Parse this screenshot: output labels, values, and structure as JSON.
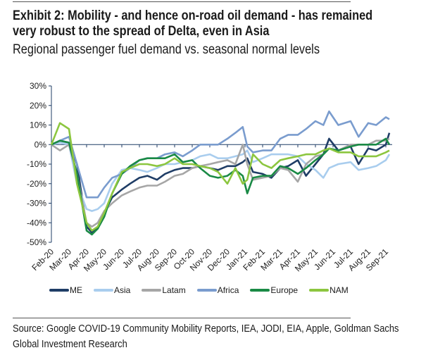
{
  "header": {
    "title_line1": "Exhibit 2: Mobility - and hence on-road oil demand - has remained",
    "title_line2": "very robust to the spread of Delta, even in Asia",
    "subtitle": "Regional passenger fuel demand vs. seasonal normal levels"
  },
  "footer": {
    "source_line1": "Source: Google COVID-19 Community Mobility Reports, IEA, JODI, EIA, Apple, Goldman Sachs",
    "source_line2": "Global Investment Research"
  },
  "chart_data": {
    "type": "line",
    "title": "",
    "xlabel": "",
    "ylabel": "",
    "ylim": [
      -50,
      30
    ],
    "yticks": [
      "30%",
      "20%",
      "10%",
      "0%",
      "-10%",
      "-20%",
      "-30%",
      "-40%",
      "-50%"
    ],
    "ytick_values": [
      30,
      20,
      10,
      0,
      -10,
      -20,
      -30,
      -40,
      -50
    ],
    "xticks": [
      "Feb-20",
      "Mar-20",
      "Apr-20",
      "May-20",
      "Jun-20",
      "Jul-20",
      "Aug-20",
      "Sep-20",
      "Oct-20",
      "Nov-20",
      "Dec-20",
      "Jan-21",
      "Feb-21",
      "Mar-21",
      "Apr-21",
      "May-21",
      "Jun-21",
      "Jul-21",
      "Aug-21",
      "Sep-21"
    ],
    "grid": false,
    "legend_position": "bottom",
    "x": [
      "2020-02-01",
      "2020-02-15",
      "2020-03-01",
      "2020-03-15",
      "2020-04-01",
      "2020-04-10",
      "2020-04-20",
      "2020-05-01",
      "2020-05-15",
      "2020-06-01",
      "2020-06-15",
      "2020-07-01",
      "2020-07-15",
      "2020-08-01",
      "2020-08-15",
      "2020-09-01",
      "2020-09-15",
      "2020-10-01",
      "2020-10-15",
      "2020-11-01",
      "2020-11-15",
      "2020-12-01",
      "2020-12-15",
      "2020-12-28",
      "2021-01-05",
      "2021-01-15",
      "2021-02-01",
      "2021-02-15",
      "2021-03-01",
      "2021-03-15",
      "2021-04-01",
      "2021-04-15",
      "2021-05-01",
      "2021-05-15",
      "2021-05-25",
      "2021-06-10",
      "2021-07-01",
      "2021-07-15",
      "2021-08-01",
      "2021-08-15",
      "2021-09-01",
      "2021-09-07"
    ],
    "series": [
      {
        "name": "ME",
        "color": "#1f3d66",
        "values": [
          0,
          2,
          1,
          -10,
          -42,
          -45,
          -43,
          -35,
          -27,
          -23,
          -20,
          -17,
          -16,
          -18,
          -15,
          -13,
          -12,
          -12,
          -11,
          -12,
          -13,
          -11,
          -11,
          -9,
          -7,
          -14,
          -15,
          -17,
          -12,
          -11,
          -8,
          -16,
          -10,
          -5,
          3,
          -3,
          -1,
          -10,
          -2,
          -3,
          0,
          6
        ]
      },
      {
        "name": "Asia",
        "color": "#a9cdee",
        "values": [
          0,
          1,
          0,
          -20,
          -33,
          -34,
          -33,
          -30,
          -20,
          -13,
          -12,
          -13,
          -14,
          -12,
          -10,
          -10,
          -9,
          -8,
          -6,
          -5,
          -7,
          -7,
          -6,
          -5,
          -3,
          -9,
          -7,
          -5,
          -5,
          -5,
          -6,
          -10,
          -13,
          -17,
          -12,
          -10,
          -9,
          -13,
          -12,
          -11,
          -8,
          -5
        ]
      },
      {
        "name": "Latam",
        "color": "#a6a6a6",
        "values": [
          0,
          -3,
          0,
          -15,
          -40,
          -42,
          -40,
          -34,
          -30,
          -26,
          -24,
          -22,
          -21,
          -21,
          -19,
          -16,
          -15,
          -12,
          -11,
          -10,
          -9,
          -8,
          -10,
          0,
          -10,
          -18,
          -17,
          -16,
          -12,
          -13,
          -19,
          -10,
          -6,
          -5,
          -2,
          -3,
          0,
          0,
          0,
          2,
          2,
          3
        ]
      },
      {
        "name": "Africa",
        "color": "#7a9cce",
        "values": [
          0,
          2,
          4,
          -10,
          -27,
          -27,
          -27,
          -22,
          -17,
          -15,
          -12,
          -8,
          -7,
          -7,
          -5,
          -4,
          -6,
          -3,
          0,
          0,
          0,
          3,
          6,
          9,
          -1,
          -4,
          -3,
          -3,
          3,
          5,
          5,
          8,
          12,
          10,
          17,
          10,
          12,
          4,
          11,
          10,
          14,
          13
        ]
      },
      {
        "name": "Europe",
        "color": "#1a8a45",
        "values": [
          0,
          2,
          1,
          -15,
          -44,
          -46,
          -43,
          -37,
          -25,
          -15,
          -11,
          -8,
          -7,
          -7,
          -7,
          -5,
          -9,
          -8,
          -12,
          -16,
          -17,
          -16,
          -13,
          -16,
          -25,
          -17,
          -16,
          -16,
          -11,
          -12,
          -15,
          -12,
          -8,
          -5,
          -2,
          -3,
          -1,
          0,
          0,
          0,
          3,
          0
        ]
      },
      {
        "name": "NAM",
        "color": "#8cc63f",
        "values": [
          0,
          11,
          8,
          -20,
          -40,
          -44,
          -42,
          -35,
          -25,
          -14,
          -12,
          -10,
          -10,
          -11,
          -10,
          -7,
          -10,
          -10,
          -11,
          -12,
          -14,
          -20,
          -12,
          -20,
          -18,
          -5,
          -10,
          -12,
          -8,
          -7,
          -6,
          -5,
          -5,
          -3,
          -2,
          -4,
          -4,
          -6,
          -6,
          -6,
          -4,
          -3
        ]
      }
    ]
  }
}
